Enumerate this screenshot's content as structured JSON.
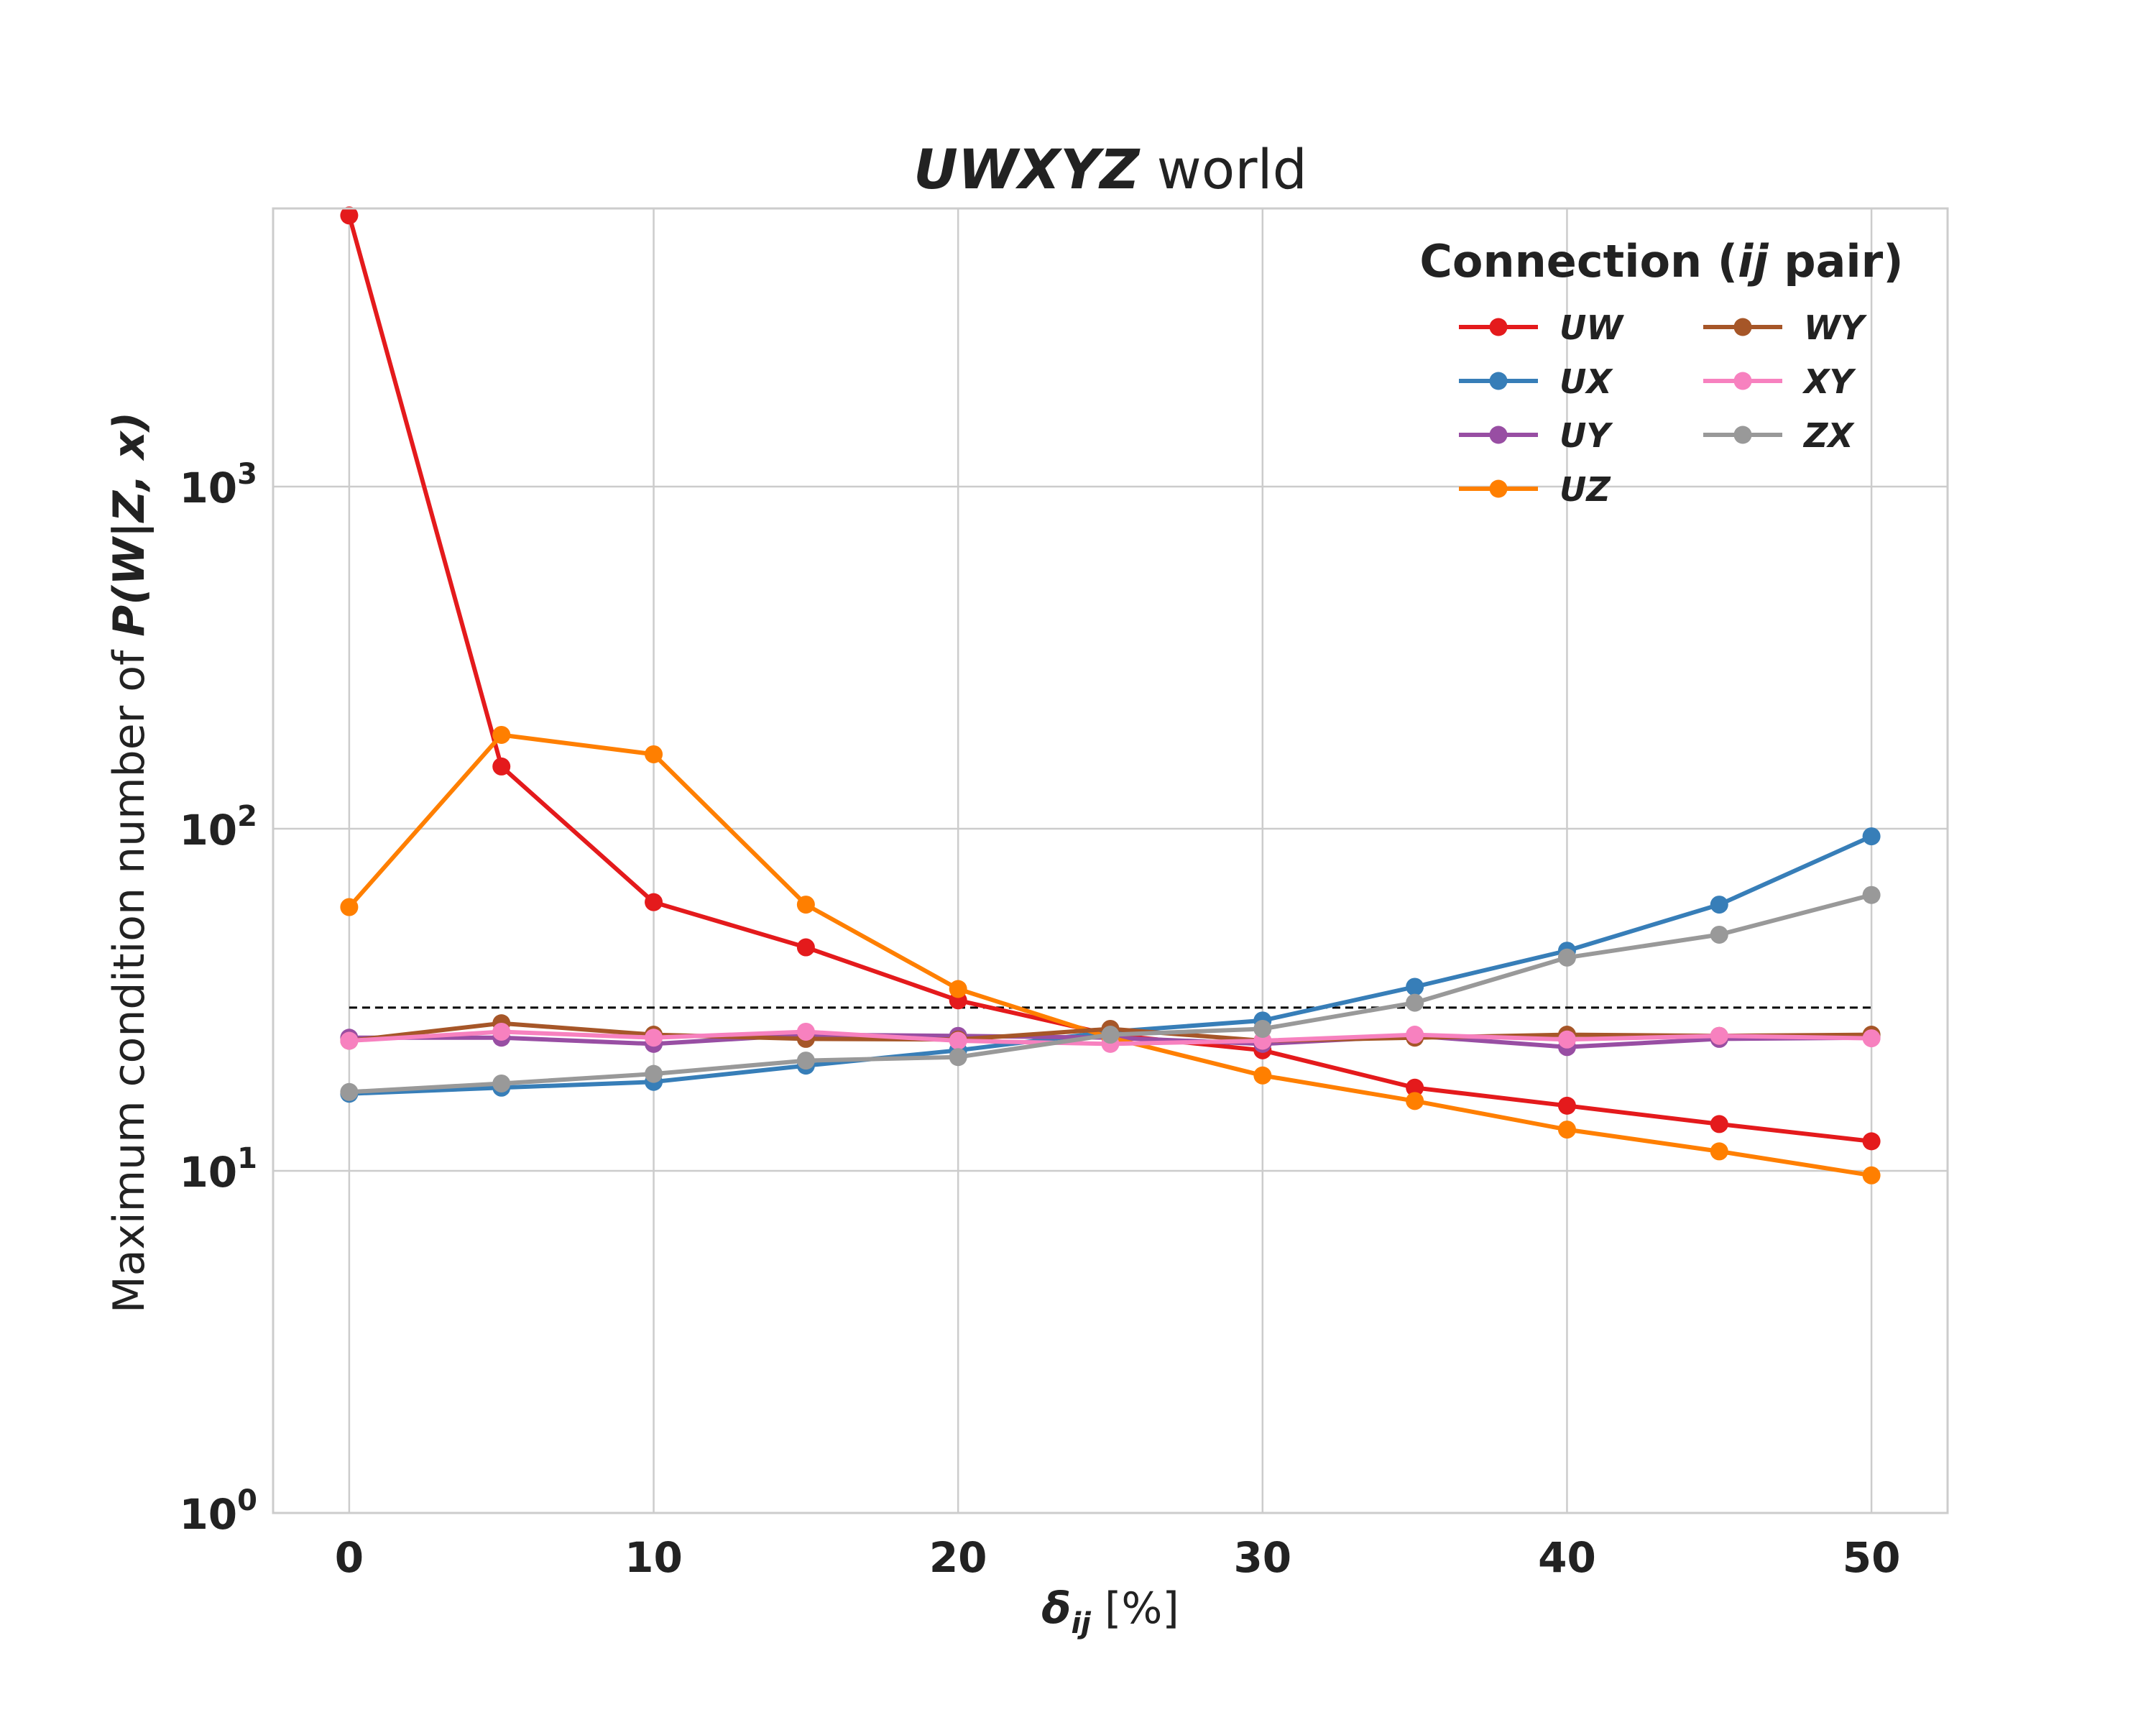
{
  "chart_data": {
    "type": "line",
    "title_bold": "UWXYZ",
    "title_rest": " world",
    "xlabel_symbol": "δ",
    "xlabel_sub": "ij",
    "xlabel_unit": " [%]",
    "ylabel_prefix": "Maximum condition number of ",
    "ylabel_expr": "P(W|Z, x)",
    "yscale": "log",
    "xlim": [
      -2.5,
      52.5
    ],
    "ylim": [
      1,
      6500
    ],
    "x": [
      0,
      5,
      10,
      15,
      20,
      25,
      30,
      35,
      40,
      45,
      50
    ],
    "xticks": [
      0,
      10,
      20,
      30,
      40,
      50
    ],
    "xtick_labels": [
      "0",
      "10",
      "20",
      "30",
      "40",
      "50"
    ],
    "yticks": [
      {
        "value": 1,
        "base": "10",
        "exp": "0"
      },
      {
        "value": 10,
        "base": "10",
        "exp": "1"
      },
      {
        "value": 100,
        "base": "10",
        "exp": "2"
      },
      {
        "value": 1000,
        "base": "10",
        "exp": "3"
      }
    ],
    "grid": true,
    "threshold": {
      "value": 30,
      "x_from": 0,
      "x_to": 50,
      "style": "dashed",
      "color": "#000000"
    },
    "legend": {
      "title_prefix": "Connection (",
      "title_italic": "ij",
      "title_suffix": " pair)",
      "placement": "top-right",
      "columns": 2
    },
    "series": [
      {
        "name": "UW",
        "color": "#e41a1c",
        "values": [
          6200,
          152,
          61,
          45,
          31.5,
          25,
          22.5,
          17.5,
          15.5,
          13.7,
          12.2
        ]
      },
      {
        "name": "UX",
        "color": "#377eb8",
        "values": [
          16.8,
          17.5,
          18.2,
          20.3,
          22.5,
          25.5,
          27.5,
          34.5,
          44,
          60,
          95
        ]
      },
      {
        "name": "UY",
        "color": "#984ea3",
        "values": [
          24.5,
          24.5,
          23.5,
          25,
          24.8,
          24.5,
          23.5,
          24.8,
          23,
          24.3,
          24.5
        ]
      },
      {
        "name": "UZ",
        "color": "#ff7f00",
        "values": [
          59,
          188,
          165,
          60,
          34,
          24.5,
          19,
          16,
          13.2,
          11.4,
          9.7
        ]
      },
      {
        "name": "WY",
        "color": "#a65628",
        "values": [
          24,
          27,
          25,
          24.3,
          24.2,
          26,
          24,
          24.5,
          25,
          24.8,
          25
        ]
      },
      {
        "name": "XY",
        "color": "#f781bf",
        "values": [
          24,
          25.5,
          24.5,
          25.5,
          24,
          23.5,
          24,
          25,
          24.2,
          24.8,
          24.4
        ]
      },
      {
        "name": "ZX",
        "color": "#999999",
        "values": [
          17,
          18,
          19.2,
          21,
          21.5,
          25,
          26,
          31,
          42,
          49,
          64
        ]
      }
    ]
  }
}
